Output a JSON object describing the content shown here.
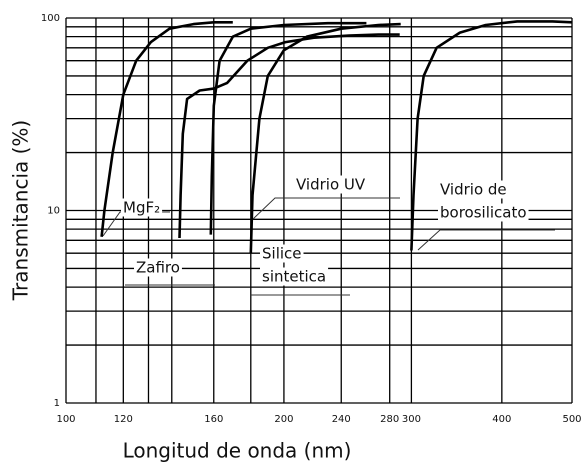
{
  "chart_data": {
    "type": "line",
    "xlabel": "Longitud de onda (nm)",
    "ylabel": "Transmitancia (%)",
    "xscale": "log",
    "yscale": "log",
    "xlim": [
      100,
      500
    ],
    "ylim": [
      1,
      100
    ],
    "xticks": [
      100,
      120,
      160,
      200,
      240,
      280,
      300,
      400,
      500
    ],
    "xminorticks": [
      110,
      130,
      140,
      180
    ],
    "yticks": [
      1,
      10,
      100
    ],
    "yminorticks": [
      2,
      3,
      4,
      5,
      6,
      7,
      8,
      9,
      20,
      30,
      40,
      50,
      60,
      70,
      80,
      90
    ],
    "grid": true,
    "color": "#000000",
    "series": [
      {
        "name": "MgF₂",
        "x": [
          112,
          113,
          116,
          120,
          125,
          131,
          139,
          150,
          160,
          170
        ],
        "values": [
          7.3,
          10,
          20,
          40,
          60,
          75,
          88,
          93,
          95,
          95
        ]
      },
      {
        "name": "Zafiro",
        "x": [
          143.5,
          144,
          145,
          147,
          153,
          160,
          167,
          178,
          190,
          201,
          220,
          246,
          270,
          289
        ],
        "values": [
          7.2,
          12,
          25,
          38,
          42,
          43,
          46,
          60,
          70,
          75,
          79,
          81,
          82,
          82
        ]
      },
      {
        "name": [
          "Silice",
          "sintetica"
        ],
        "x": [
          158.5,
          159,
          160,
          163,
          170,
          180,
          200,
          230,
          260
        ],
        "values": [
          7.5,
          15,
          35,
          60,
          80,
          88,
          92,
          94,
          94
        ]
      },
      {
        "name": "Vidrio UV",
        "x": [
          180,
          181,
          185,
          190,
          200,
          215,
          240,
          270,
          290
        ],
        "values": [
          6,
          12,
          30,
          50,
          68,
          80,
          88,
          92,
          93
        ]
      },
      {
        "name": [
          "Vidrio de",
          "borosilicato"
        ],
        "x": [
          300,
          302,
          306,
          312,
          325,
          350,
          380,
          420,
          470,
          500
        ],
        "values": [
          6.2,
          12,
          30,
          50,
          70,
          84,
          92,
          96,
          96,
          95
        ]
      }
    ]
  }
}
